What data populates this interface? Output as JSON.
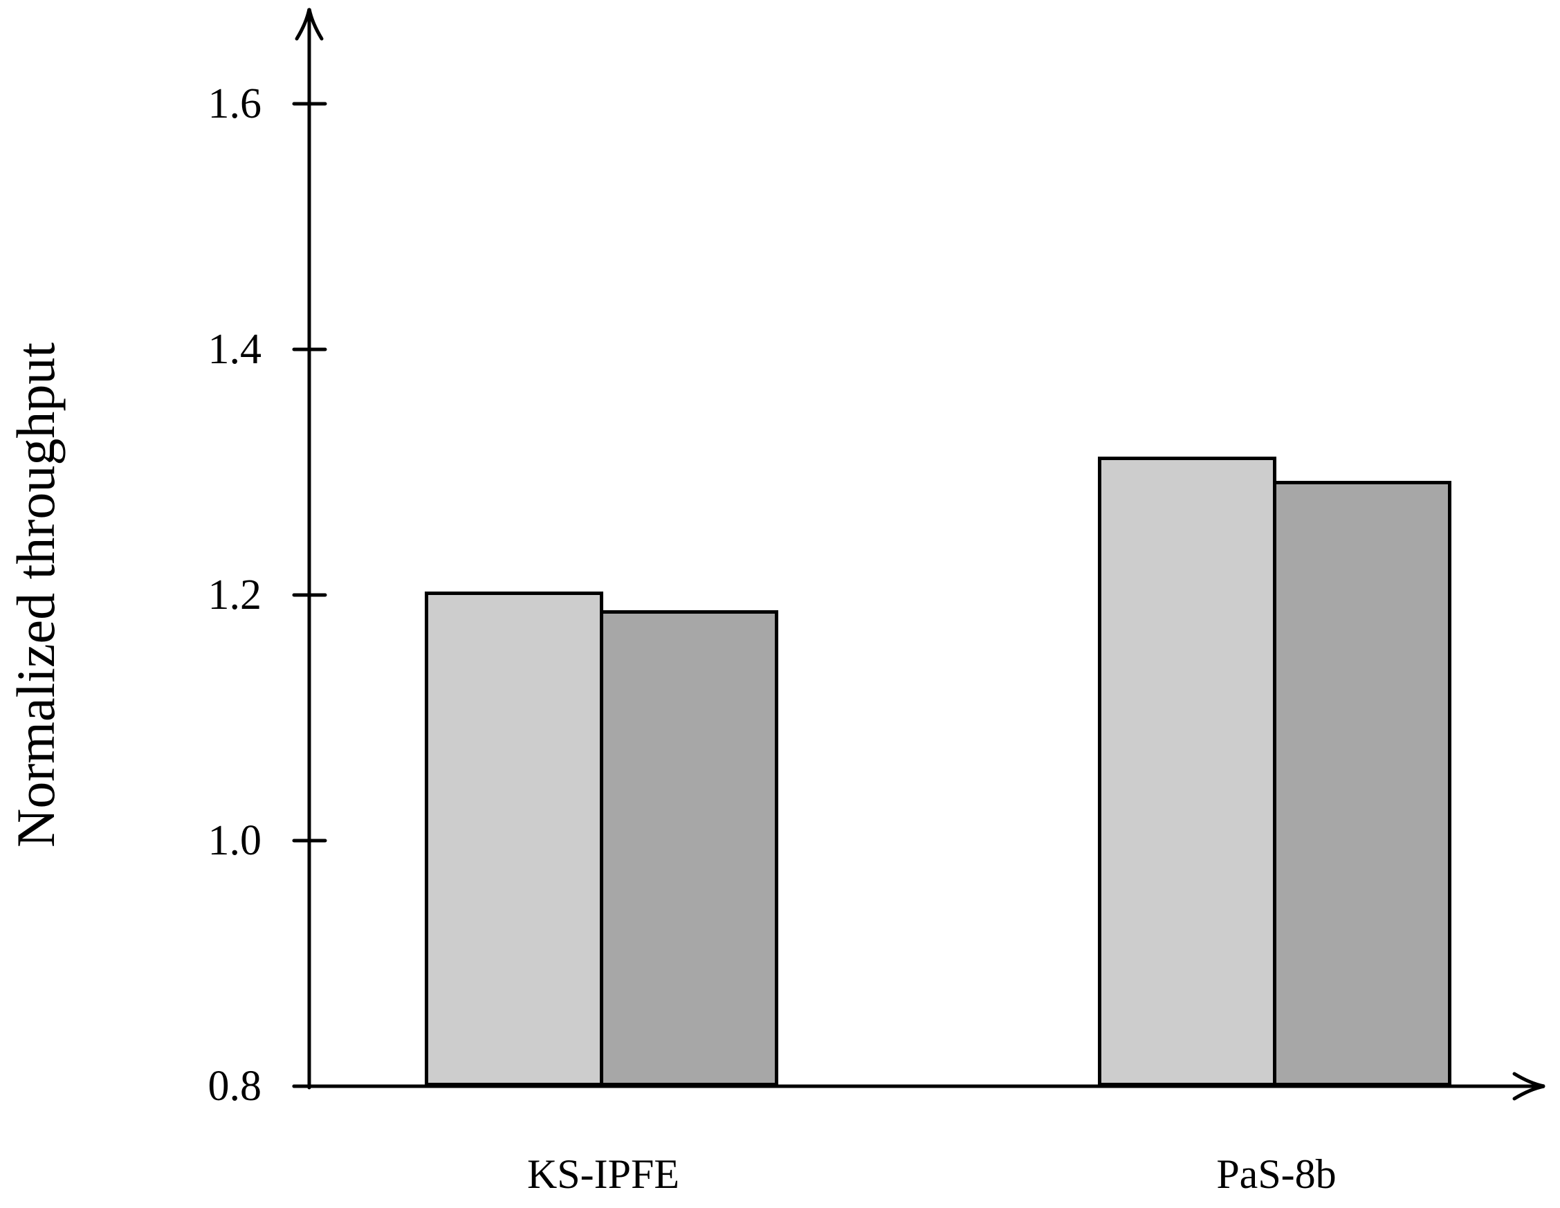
{
  "figure": {
    "background_color": "#ffffff",
    "axis_color": "#000000",
    "bar_border_color": "#000000"
  },
  "chart_data": {
    "type": "bar",
    "title": "",
    "xlabel": "",
    "ylabel": "Normalized throughput",
    "categories": [
      "KS-IPFE",
      "PaS-8b"
    ],
    "series": [
      {
        "name": "light-gray",
        "color": "#cdcdcd",
        "values": [
          1.2,
          1.31
        ]
      },
      {
        "name": "dark-gray",
        "color": "#a7a7a7",
        "values": [
          1.185,
          1.29
        ]
      }
    ],
    "y_ticks": [
      0.8,
      1.0,
      1.2,
      1.4,
      1.6
    ],
    "y_tick_labels": [
      "0.8",
      "1.0",
      "1.2",
      "1.4",
      "1.6"
    ],
    "ylim": [
      0.8,
      1.68
    ],
    "grid": false,
    "legend": "none",
    "bar_style": "outlined, grouped pairs, arrow-tipped axes"
  }
}
